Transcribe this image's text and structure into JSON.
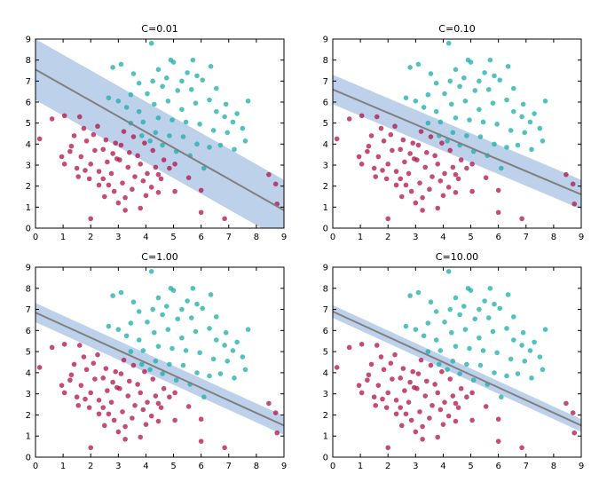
{
  "chart_data": [
    {
      "type": "scatter",
      "title": "C=0.01",
      "xlim": [
        0,
        9
      ],
      "ylim": [
        0,
        9
      ],
      "xticks": [
        "0",
        "1",
        "2",
        "3",
        "4",
        "5",
        "6",
        "7",
        "8",
        "9"
      ],
      "yticks": [
        "0",
        "1",
        "2",
        "3",
        "4",
        "5",
        "6",
        "7",
        "8",
        "9"
      ],
      "grid": false,
      "decision_line": {
        "x": [
          0,
          9
        ],
        "y": [
          7.55,
          0.85
        ]
      },
      "margin_band": {
        "upper": [
          9.0,
          2.3
        ],
        "lower": [
          6.1,
          -0.6
        ]
      }
    },
    {
      "type": "scatter",
      "title": "C=0.10",
      "xlim": [
        0,
        9
      ],
      "ylim": [
        0,
        9
      ],
      "xticks": [
        "0",
        "1",
        "2",
        "3",
        "4",
        "5",
        "6",
        "7",
        "8",
        "9"
      ],
      "yticks": [
        "0",
        "1",
        "2",
        "3",
        "4",
        "5",
        "6",
        "7",
        "8",
        "9"
      ],
      "grid": false,
      "decision_line": {
        "x": [
          0,
          9
        ],
        "y": [
          6.6,
          1.6
        ]
      },
      "margin_band": {
        "upper": [
          7.3,
          2.3
        ],
        "lower": [
          5.9,
          0.9
        ]
      }
    },
    {
      "type": "scatter",
      "title": "C=1.00",
      "xlim": [
        0,
        9
      ],
      "ylim": [
        0,
        9
      ],
      "xticks": [
        "0",
        "1",
        "2",
        "3",
        "4",
        "5",
        "6",
        "7",
        "8",
        "9"
      ],
      "yticks": [
        "0",
        "1",
        "2",
        "3",
        "4",
        "5",
        "6",
        "7",
        "8",
        "9"
      ],
      "grid": false,
      "decision_line": {
        "x": [
          0,
          9
        ],
        "y": [
          6.85,
          1.5
        ]
      },
      "margin_band": {
        "upper": [
          7.3,
          1.95
        ],
        "lower": [
          6.4,
          1.05
        ]
      }
    },
    {
      "type": "scatter",
      "title": "C=10.00",
      "xlim": [
        0,
        9
      ],
      "ylim": [
        0,
        9
      ],
      "xticks": [
        "0",
        "1",
        "2",
        "3",
        "4",
        "5",
        "6",
        "7",
        "8",
        "9"
      ],
      "yticks": [
        "0",
        "1",
        "2",
        "3",
        "4",
        "5",
        "6",
        "7",
        "8",
        "9"
      ],
      "grid": false,
      "decision_line": {
        "x": [
          0,
          9
        ],
        "y": [
          6.9,
          1.5
        ]
      },
      "margin_band": {
        "upper": [
          7.2,
          1.8
        ],
        "lower": [
          6.6,
          1.2
        ]
      }
    }
  ],
  "shared_points": {
    "crimson": [
      [
        0.15,
        4.25
      ],
      [
        0.6,
        5.2
      ],
      [
        1.05,
        5.35
      ],
      [
        1.6,
        5.3
      ],
      [
        2.0,
        0.45
      ],
      [
        3.25,
        0.85
      ],
      [
        2.3,
        2.05
      ],
      [
        1.5,
        2.85
      ],
      [
        2.5,
        1.5
      ],
      [
        3.0,
        1.2
      ],
      [
        6.0,
        0.75
      ],
      [
        6.85,
        0.45
      ],
      [
        8.45,
        2.55
      ],
      [
        8.75,
        1.15
      ],
      [
        8.7,
        2.1
      ],
      [
        6.0,
        1.8
      ],
      [
        5.05,
        1.75
      ],
      [
        4.45,
        1.7
      ],
      [
        3.8,
        0.95
      ],
      [
        1.05,
        3.05
      ],
      [
        1.3,
        3.9
      ],
      [
        1.75,
        4.75
      ],
      [
        2.1,
        4.45
      ],
      [
        2.45,
        3.75
      ],
      [
        2.8,
        3.55
      ],
      [
        3.05,
        3.25
      ],
      [
        3.35,
        2.9
      ],
      [
        3.6,
        2.45
      ],
      [
        3.9,
        2.25
      ],
      [
        4.2,
        1.95
      ],
      [
        4.55,
        2.35
      ],
      [
        4.85,
        2.85
      ],
      [
        5.05,
        3.05
      ],
      [
        5.55,
        2.4
      ],
      [
        4.65,
        3.25
      ],
      [
        4.25,
        3.7
      ],
      [
        3.95,
        4.05
      ],
      [
        3.55,
        4.35
      ],
      [
        3.2,
        4.6
      ],
      [
        2.9,
        4.05
      ],
      [
        2.6,
        3.15
      ],
      [
        2.3,
        2.7
      ],
      [
        1.95,
        2.35
      ],
      [
        1.65,
        3.4
      ],
      [
        1.4,
        4.4
      ],
      [
        2.15,
        3.7
      ],
      [
        2.75,
        2.6
      ],
      [
        3.4,
        3.6
      ],
      [
        3.8,
        3.05
      ],
      [
        4.05,
        2.6
      ],
      [
        4.35,
        2.9
      ],
      [
        3.15,
        2.15
      ],
      [
        2.45,
        2.35
      ],
      [
        2.0,
        3.05
      ],
      [
        1.25,
        3.65
      ],
      [
        0.95,
        3.4
      ],
      [
        1.55,
        2.45
      ],
      [
        2.85,
        1.75
      ],
      [
        3.5,
        1.85
      ],
      [
        4.0,
        1.55
      ],
      [
        3.1,
        3.95
      ],
      [
        2.55,
        4.2
      ],
      [
        2.25,
        4.85
      ],
      [
        1.85,
        4.15
      ],
      [
        2.95,
        3.3
      ],
      [
        3.7,
        3.45
      ],
      [
        4.45,
        2.55
      ],
      [
        3.25,
        1.45
      ],
      [
        2.65,
        2.05
      ],
      [
        1.8,
        2.75
      ]
    ],
    "teal": [
      [
        4.2,
        8.8
      ],
      [
        3.1,
        7.8
      ],
      [
        2.8,
        7.65
      ],
      [
        4.45,
        7.55
      ],
      [
        5.0,
        7.9
      ],
      [
        5.5,
        7.4
      ],
      [
        6.05,
        7.05
      ],
      [
        5.65,
        6.6
      ],
      [
        5.15,
        6.55
      ],
      [
        4.6,
        6.75
      ],
      [
        4.05,
        6.4
      ],
      [
        3.45,
        6.35
      ],
      [
        3.0,
        6.05
      ],
      [
        2.65,
        6.2
      ],
      [
        3.3,
        5.75
      ],
      [
        3.75,
        5.55
      ],
      [
        4.3,
        5.9
      ],
      [
        4.8,
        6.05
      ],
      [
        5.3,
        5.65
      ],
      [
        5.8,
        5.95
      ],
      [
        6.3,
        6.1
      ],
      [
        6.55,
        5.55
      ],
      [
        6.85,
        5.3
      ],
      [
        7.15,
        5.05
      ],
      [
        7.7,
        6.05
      ],
      [
        7.5,
        4.75
      ],
      [
        6.95,
        4.55
      ],
      [
        6.45,
        4.65
      ],
      [
        5.95,
        4.95
      ],
      [
        5.45,
        5.05
      ],
      [
        4.95,
        5.15
      ],
      [
        4.45,
        5.25
      ],
      [
        3.9,
        5.05
      ],
      [
        3.45,
        5.0
      ],
      [
        3.85,
        4.4
      ],
      [
        4.35,
        4.55
      ],
      [
        4.85,
        4.4
      ],
      [
        5.35,
        4.35
      ],
      [
        5.85,
        4.0
      ],
      [
        6.3,
        3.85
      ],
      [
        6.7,
        3.95
      ],
      [
        7.2,
        3.75
      ],
      [
        7.6,
        4.15
      ],
      [
        6.1,
        2.85
      ],
      [
        5.6,
        3.45
      ],
      [
        5.1,
        3.65
      ],
      [
        4.6,
        3.95
      ],
      [
        4.15,
        4.15
      ],
      [
        6.55,
        6.65
      ],
      [
        5.85,
        7.25
      ],
      [
        5.3,
        7.0
      ],
      [
        4.75,
        7.15
      ],
      [
        4.25,
        7.0
      ],
      [
        3.75,
        6.9
      ],
      [
        3.55,
        7.35
      ],
      [
        6.35,
        7.7
      ],
      [
        5.7,
        8.0
      ],
      [
        4.9,
        8.0
      ],
      [
        6.9,
        5.9
      ],
      [
        7.3,
        5.45
      ]
    ]
  }
}
